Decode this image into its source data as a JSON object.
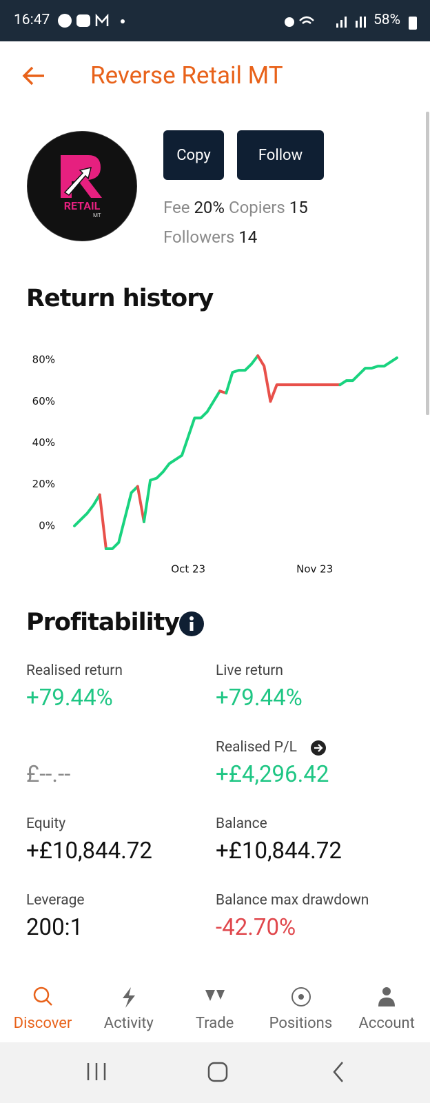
{
  "status_bar": {
    "time": "16:47",
    "battery": "58%"
  },
  "header": {
    "title": "Reverse Retail MT"
  },
  "profile": {
    "logo_text": "RETAIL",
    "logo_subtext": "MT",
    "buttons": [
      "Copy",
      "Follow"
    ],
    "stats": [
      {
        "label": "Fee",
        "value": "20%"
      },
      {
        "label": "Copiers",
        "value": "15"
      },
      {
        "label": "Followers",
        "value": "14"
      }
    ]
  },
  "chart_data": {
    "type": "line",
    "title": "Return history",
    "categories": [
      null,
      null,
      null,
      null,
      null,
      null,
      null,
      null,
      null,
      null,
      null,
      null,
      null,
      null,
      null,
      null,
      null,
      null,
      "Oct 23",
      null,
      null,
      null,
      null,
      null,
      null,
      null,
      null,
      null,
      null,
      null,
      null,
      null,
      null,
      null,
      null,
      null,
      null,
      null,
      "Nov 23",
      null,
      null,
      null,
      null,
      null,
      null,
      null,
      null,
      null,
      null,
      null,
      null,
      null
    ],
    "series": [
      {
        "values": [
          0,
          3,
          6,
          10,
          15,
          -11,
          -11,
          -8,
          4,
          16,
          19,
          2,
          22,
          23,
          26,
          30,
          32,
          34,
          43,
          52,
          52,
          55,
          60,
          65,
          64,
          74,
          75,
          75,
          78,
          82,
          77,
          60,
          68,
          68,
          68,
          68,
          68,
          68,
          68,
          68,
          68,
          68,
          68,
          70,
          70,
          73,
          76,
          76,
          77,
          77,
          79,
          81
        ],
        "colors": [
          "#19d37f",
          "#19d37f",
          "#19d37f",
          "#19d37f",
          "#19d37f",
          "#e8504a",
          "#19d37f",
          "#19d37f",
          "#19d37f",
          "#19d37f",
          "#19d37f",
          "#e8504a",
          "#19d37f",
          "#19d37f",
          "#19d37f",
          "#19d37f",
          "#19d37f",
          "#19d37f",
          "#19d37f",
          "#19d37f",
          "#19d37f",
          "#19d37f",
          "#19d37f",
          "#19d37f",
          "#e8504a",
          "#19d37f",
          "#19d37f",
          "#19d37f",
          "#19d37f",
          "#19d37f",
          "#e8504a",
          "#e8504a",
          "#e8504a",
          "#e8504a",
          "#e8504a",
          "#e8504a",
          "#e8504a",
          "#e8504a",
          "#e8504a",
          "#e8504a",
          "#e8504a",
          "#e8504a",
          "#e8504a",
          "#19d37f",
          "#19d37f",
          "#19d37f",
          "#19d37f",
          "#19d37f",
          "#19d37f",
          "#19d37f",
          "#19d37f",
          "#19d37f"
        ]
      }
    ],
    "ylim": [
      -12,
      86
    ],
    "yticks": [
      {
        "value": 0,
        "label": "0%"
      },
      {
        "value": 20,
        "label": "20%"
      },
      {
        "value": 40,
        "label": "40%"
      },
      {
        "value": 60,
        "label": "60%"
      },
      {
        "value": 80,
        "label": "80%"
      }
    ],
    "grid": false
  },
  "profitability": {
    "title": "Profitability",
    "metrics": [
      {
        "label": "Realised return",
        "value": "+79.44%",
        "color": "#1fc684"
      },
      {
        "label": "Live return",
        "value": "+79.44%",
        "color": "#1fc684"
      },
      {
        "value": "£--.--",
        "color": "#8a8a8a"
      },
      {
        "label": "Realised P/L",
        "value": "+£4,296.42",
        "color": "#1fc684"
      },
      {
        "label": "Equity",
        "value": "+£10,844.72",
        "color": "#111111"
      },
      {
        "label": "Balance",
        "value": "+£10,844.72",
        "color": "#111111"
      },
      {
        "label": "Leverage",
        "value": "200:1",
        "color": "#111111"
      },
      {
        "label": "Balance max drawdown",
        "value": "-42.70%",
        "color": "#e0474c"
      }
    ]
  },
  "nav": {
    "items": [
      "Discover",
      "Activity",
      "Trade",
      "Positions",
      "Account"
    ],
    "active": "Discover"
  }
}
